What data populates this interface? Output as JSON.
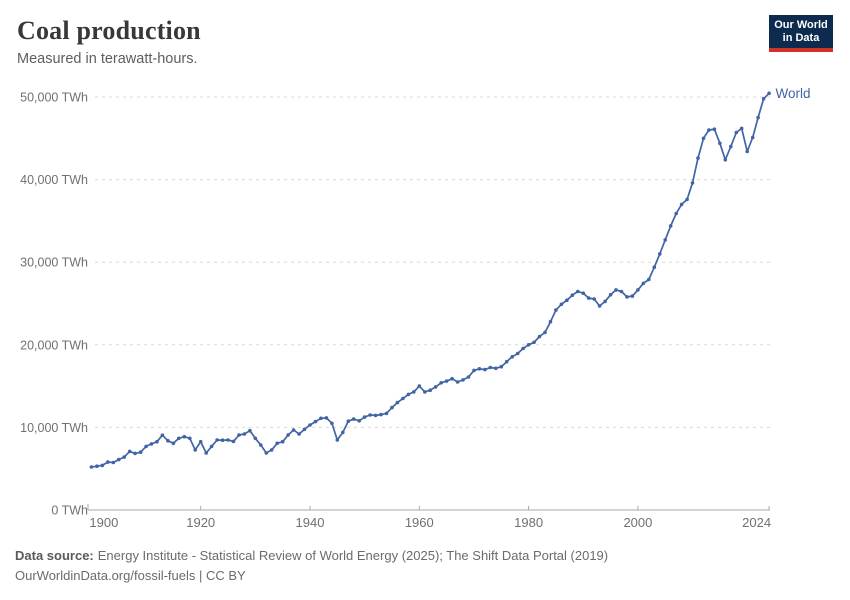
{
  "header": {
    "title": "Coal production",
    "subtitle": "Measured in terawatt-hours."
  },
  "logo": {
    "line1": "Our World",
    "line2": "in Data",
    "bg_color": "#0c2b4e",
    "accent_color": "#d03328"
  },
  "chart_data": {
    "type": "line",
    "title": "Coal production",
    "subtitle": "Measured in terawatt-hours.",
    "unit": "TWh",
    "xlabel": "",
    "ylabel": "",
    "xlim": [
      1900,
      2024
    ],
    "ylim": [
      0,
      52000
    ],
    "grid": "horizontal-dashed",
    "legend_position": "end-of-line-label",
    "grid_color": "#d9d9d9",
    "axis_color": "#a8a8a8",
    "tick_text_color": "#707070",
    "xticks": [
      1900,
      1920,
      1940,
      1960,
      1980,
      2000,
      2024
    ],
    "xtick_labels": [
      "1900",
      "1920",
      "1940",
      "1960",
      "1980",
      "2000",
      "2024"
    ],
    "yticks": [
      0,
      10000,
      20000,
      30000,
      40000,
      50000
    ],
    "ytick_labels": [
      "0 TWh",
      "10,000 TWh",
      "20,000 TWh",
      "30,000 TWh",
      "40,000 TWh",
      "50,000 TWh"
    ],
    "years": [
      1900,
      1901,
      1902,
      1903,
      1904,
      1905,
      1906,
      1907,
      1908,
      1909,
      1910,
      1911,
      1912,
      1913,
      1914,
      1915,
      1916,
      1917,
      1918,
      1919,
      1920,
      1921,
      1922,
      1923,
      1924,
      1925,
      1926,
      1927,
      1928,
      1929,
      1930,
      1931,
      1932,
      1933,
      1934,
      1935,
      1936,
      1937,
      1938,
      1939,
      1940,
      1941,
      1942,
      1943,
      1944,
      1945,
      1946,
      1947,
      1948,
      1949,
      1950,
      1951,
      1952,
      1953,
      1954,
      1955,
      1956,
      1957,
      1958,
      1959,
      1960,
      1961,
      1962,
      1963,
      1964,
      1965,
      1966,
      1967,
      1968,
      1969,
      1970,
      1971,
      1972,
      1973,
      1974,
      1975,
      1976,
      1977,
      1978,
      1979,
      1980,
      1981,
      1982,
      1983,
      1984,
      1985,
      1986,
      1987,
      1988,
      1989,
      1990,
      1991,
      1992,
      1993,
      1994,
      1995,
      1996,
      1997,
      1998,
      1999,
      2000,
      2001,
      2002,
      2003,
      2004,
      2005,
      2006,
      2007,
      2008,
      2009,
      2010,
      2011,
      2012,
      2013,
      2014,
      2015,
      2016,
      2017,
      2018,
      2019,
      2020,
      2021,
      2022,
      2023,
      2024
    ],
    "series": [
      {
        "name": "World",
        "color": "#4064a4",
        "values": [
          5200,
          5300,
          5400,
          5800,
          5750,
          6100,
          6400,
          7100,
          6850,
          7000,
          7700,
          8000,
          8270,
          9050,
          8390,
          8070,
          8680,
          8880,
          8680,
          7270,
          8270,
          6900,
          7700,
          8470,
          8450,
          8470,
          8300,
          9080,
          9200,
          9600,
          8680,
          7870,
          6900,
          7270,
          8070,
          8270,
          9080,
          9690,
          9200,
          9770,
          10290,
          10700,
          11100,
          11150,
          10500,
          8470,
          9400,
          10750,
          11000,
          10800,
          11250,
          11500,
          11450,
          11550,
          11700,
          12400,
          13000,
          13500,
          14000,
          14300,
          15000,
          14300,
          14500,
          14900,
          15400,
          15600,
          15900,
          15500,
          15750,
          16100,
          16900,
          17100,
          17000,
          17250,
          17150,
          17350,
          17950,
          18550,
          18950,
          19550,
          20000,
          20300,
          21000,
          21500,
          22800,
          24200,
          24900,
          25400,
          26000,
          26450,
          26250,
          25650,
          25550,
          24700,
          25250,
          26050,
          26650,
          26450,
          25800,
          25900,
          26650,
          27450,
          27900,
          29400,
          31000,
          32700,
          34400,
          35900,
          37000,
          37600,
          39600,
          42600,
          45000,
          46000,
          46100,
          44400,
          42400,
          44000,
          45700,
          46200,
          43400,
          45100,
          47500,
          49800,
          50450
        ]
      }
    ]
  },
  "footer": {
    "source_label": "Data source:",
    "source_text": "Energy Institute - Statistical Review of World Energy (2025); The Shift Data Portal (2019)",
    "url_text": "OurWorldinData.org/fossil-fuels",
    "license_text": " | CC BY"
  }
}
